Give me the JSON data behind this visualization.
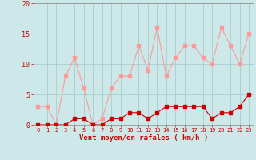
{
  "x": [
    0,
    1,
    2,
    3,
    4,
    5,
    6,
    7,
    8,
    9,
    10,
    11,
    12,
    13,
    14,
    15,
    16,
    17,
    18,
    19,
    20,
    21,
    22,
    23
  ],
  "wind_avg": [
    0,
    0,
    0,
    0,
    1,
    1,
    0,
    0,
    1,
    1,
    2,
    2,
    1,
    2,
    3,
    3,
    3,
    3,
    3,
    1,
    2,
    2,
    3,
    5
  ],
  "wind_gust": [
    3,
    3,
    0,
    8,
    11,
    6,
    0,
    1,
    6,
    8,
    8,
    13,
    9,
    16,
    8,
    11,
    13,
    13,
    11,
    10,
    16,
    13,
    10,
    15
  ],
  "bg_color": "#cce8e8",
  "grid_color": "#aacccc",
  "line_avg_color": "#cc0000",
  "line_gust_color": "#ff9999",
  "xlabel": "Vent moyen/en rafales ( km/h )",
  "ylim": [
    0,
    20
  ],
  "yticks": [
    0,
    5,
    10,
    15,
    20
  ],
  "xticks": [
    0,
    1,
    2,
    3,
    4,
    5,
    6,
    7,
    8,
    9,
    10,
    11,
    12,
    13,
    14,
    15,
    16,
    17,
    18,
    19,
    20,
    21,
    22,
    23
  ]
}
